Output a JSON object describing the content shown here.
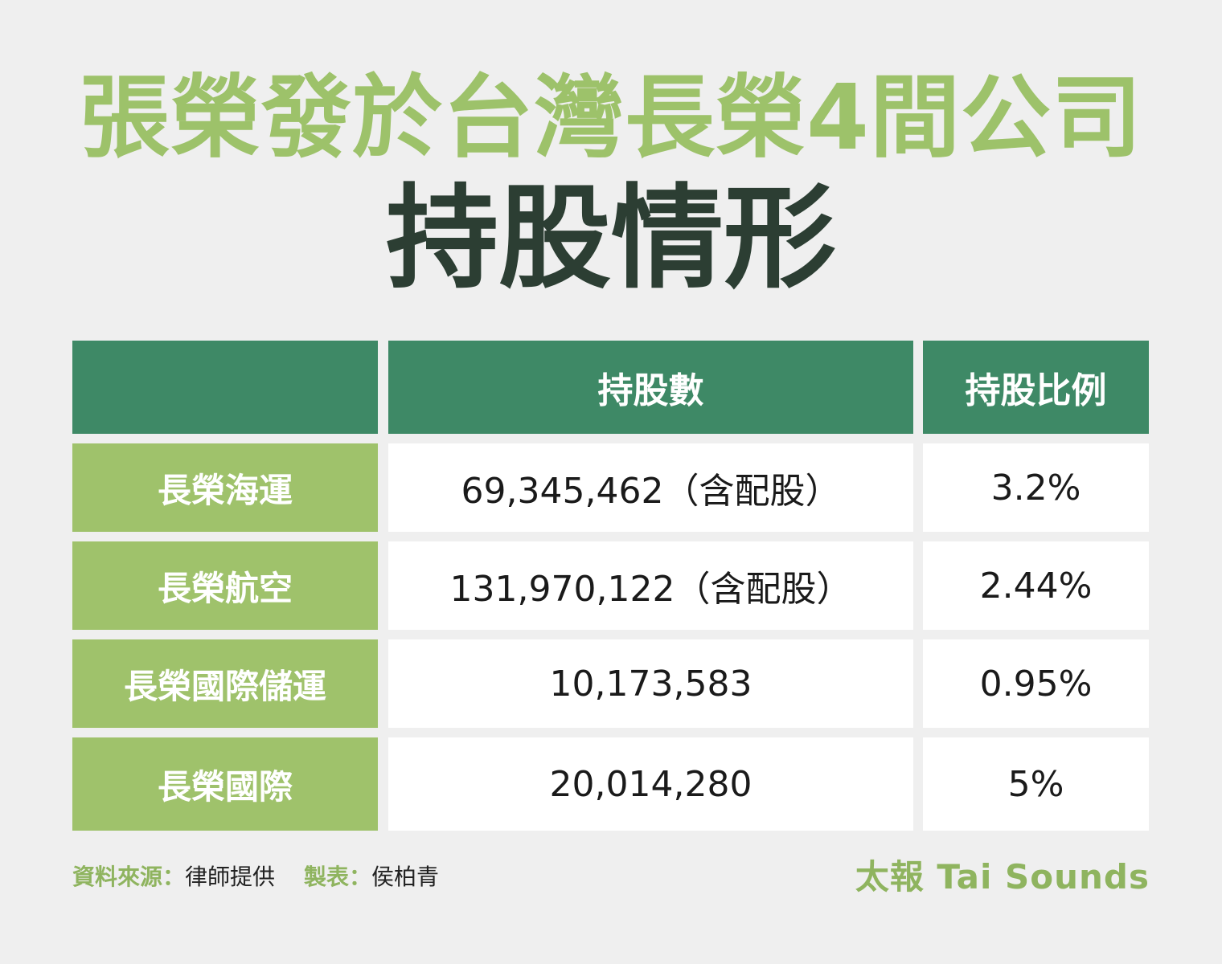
{
  "title": {
    "line1": "張榮發於台灣長榮4間公司",
    "line2": "持股情形"
  },
  "colors": {
    "background": "#efefef",
    "title_green": "#9dc26a",
    "title_dark": "#2c3e33",
    "header_green": "#3e8966",
    "row_label_green": "#9fc26b",
    "cell_white": "#ffffff"
  },
  "chart_data": {
    "type": "table",
    "columns": [
      "",
      "持股數",
      "持股比例"
    ],
    "rows": [
      {
        "company": "長榮海運",
        "shares": "69,345,462（含配股）",
        "ratio": "3.2%"
      },
      {
        "company": "長榮航空",
        "shares": "131,970,122（含配股）",
        "ratio": "2.44%"
      },
      {
        "company": "長榮國際儲運",
        "shares": "10,173,583",
        "ratio": "0.95%"
      },
      {
        "company": "長榮國際",
        "shares": "20,014,280",
        "ratio": "5%"
      }
    ]
  },
  "footer": {
    "source_label": "資料來源：",
    "source_text": "律師提供",
    "maker_label": "製表：",
    "maker_text": "侯柏青",
    "brand": "太報 Tai Sounds"
  }
}
